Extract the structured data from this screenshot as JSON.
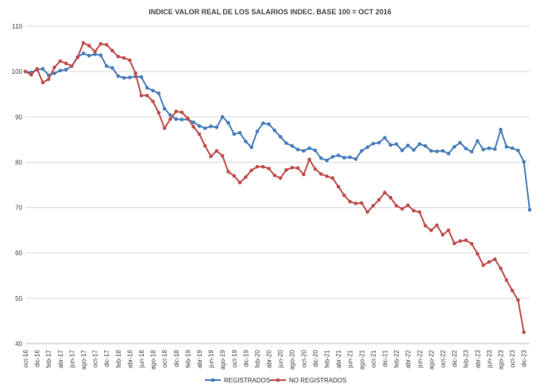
{
  "chart_data": {
    "type": "line",
    "title": "INDICE VALOR REAL DE LOS SALARIOS INDEC. BASE 100 = OCT 2016",
    "xlabel": "",
    "ylabel": "",
    "ylim": [
      40,
      110
    ],
    "yticks": [
      40,
      50,
      60,
      70,
      80,
      90,
      100,
      110
    ],
    "grid": true,
    "legend_position": "bottom",
    "x_tick_labels": [
      "oct-16",
      "dic-16",
      "feb-17",
      "abr-17",
      "jun-17",
      "ago-17",
      "oct-17",
      "dic-17",
      "feb-18",
      "abr-18",
      "jun-18",
      "ago-18",
      "oct-18",
      "dic-18",
      "feb-19",
      "abr-19",
      "jun-19",
      "ago-19",
      "oct-19",
      "dic-19",
      "feb-20",
      "abr-20",
      "jun-20",
      "ago-20",
      "oct-20",
      "dic-20",
      "feb-21",
      "abr-21",
      "jun-21",
      "ago-21",
      "oct-21",
      "dic-21",
      "feb-22",
      "abr-22",
      "jun-22",
      "ago-22",
      "oct-22",
      "dic-22",
      "feb-23",
      "abr-23",
      "jun-23",
      "ago-23",
      "oct-23",
      "dic-23"
    ],
    "series": [
      {
        "name": "REGISTRADOS",
        "color": "#4a7ebb",
        "values": [
          100.0,
          99.8,
          100.4,
          100.6,
          99.2,
          99.6,
          100.2,
          100.4,
          101.2,
          103.2,
          104.0,
          103.5,
          103.8,
          103.6,
          101.2,
          100.8,
          99.0,
          98.6,
          98.7,
          98.9,
          98.8,
          96.4,
          95.8,
          95.2,
          91.8,
          90.4,
          89.5,
          89.4,
          89.5,
          88.8,
          88.0,
          87.5,
          87.9,
          87.7,
          90.0,
          88.7,
          86.2,
          86.5,
          84.6,
          83.3,
          86.8,
          88.6,
          88.4,
          87.0,
          85.6,
          84.2,
          83.6,
          82.8,
          82.5,
          83.1,
          82.6,
          80.9,
          80.4,
          81.2,
          81.5,
          81.0,
          81.1,
          80.7,
          82.5,
          83.3,
          84.1,
          84.3,
          85.4,
          83.8,
          84.0,
          82.6,
          83.7,
          82.7,
          84.0,
          83.6,
          82.5,
          82.4,
          82.5,
          81.9,
          83.4,
          84.3,
          83.0,
          82.3,
          84.7,
          82.8,
          83.1,
          82.9,
          87.2,
          83.4,
          83.1,
          82.6,
          80.1,
          69.5
        ]
      },
      {
        "name": "NO REGISTRADOS",
        "color": "#c0504d",
        "values": [
          100.0,
          99.3,
          100.6,
          97.6,
          98.3,
          100.9,
          102.3,
          101.8,
          101.2,
          103.1,
          106.3,
          105.7,
          104.4,
          106.1,
          105.9,
          104.6,
          103.3,
          103.0,
          102.5,
          99.6,
          94.7,
          94.7,
          93.4,
          90.9,
          87.5,
          89.5,
          91.2,
          91.0,
          89.7,
          87.8,
          86.2,
          83.6,
          81.3,
          82.5,
          81.4,
          77.9,
          77.0,
          75.5,
          76.7,
          78.2,
          79.0,
          79.0,
          78.6,
          77.1,
          76.5,
          78.3,
          78.8,
          78.7,
          77.3,
          80.6,
          78.5,
          77.4,
          76.9,
          76.5,
          74.6,
          72.7,
          71.3,
          70.9,
          71.0,
          69.0,
          70.4,
          71.7,
          73.3,
          72.2,
          70.4,
          69.7,
          70.5,
          69.3,
          69.0,
          66.0,
          65.0,
          66.1,
          64.0,
          65.0,
          62.1,
          62.6,
          62.8,
          62.0,
          59.8,
          57.3,
          58.0,
          58.6,
          56.6,
          54.0,
          51.7,
          49.6,
          42.5
        ]
      }
    ]
  }
}
